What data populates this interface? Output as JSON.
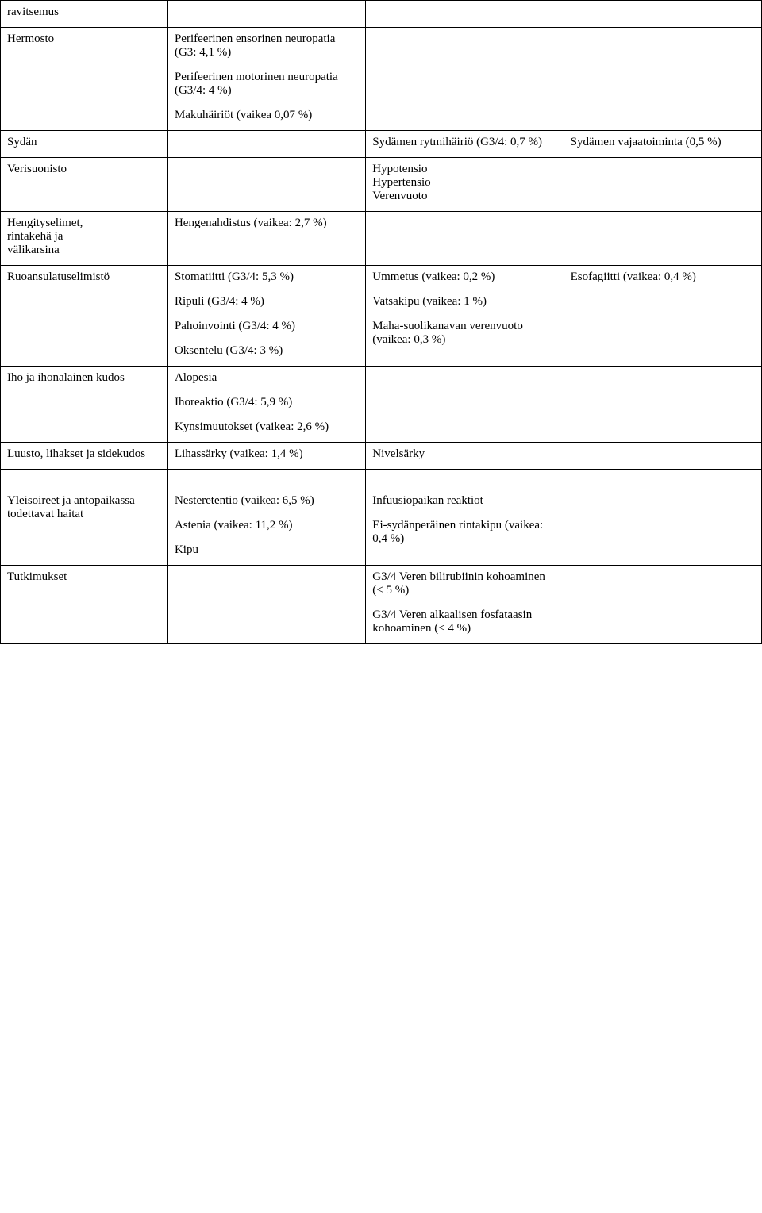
{
  "table": {
    "layout": {
      "col_widths_pct": [
        22,
        26,
        26,
        26
      ],
      "border_color": "#000000",
      "background_color": "#ffffff",
      "font_family": "Times New Roman",
      "font_size_pt": 11,
      "text_color": "#000000"
    },
    "rows": [
      {
        "c1": "ravitsemus",
        "c2": "",
        "c3": "",
        "c4": ""
      },
      {
        "c1": "Hermosto",
        "c2_paras": [
          "Perifeerinen ensorinen neuropatia (G3: 4,1 %)",
          "Perifeerinen motorinen neuropatia (G3/4: 4 %)",
          "Makuhäiriöt (vaikea 0,07 %)"
        ],
        "c3": "",
        "c4": ""
      },
      {
        "c1": "Sydän",
        "c2": "",
        "c3": "Sydämen rytmihäiriö (G3/4: 0,7 %)",
        "c4": "Sydämen vajaatoiminta (0,5 %)"
      },
      {
        "c1": "Verisuonisto",
        "c2": "",
        "c3_lines": [
          "Hypotensio",
          "Hypertensio",
          "Verenvuoto"
        ],
        "c4": ""
      },
      {
        "c1_lines": [
          "Hengityselimet,",
          "rintakehä ja",
          "välikarsina"
        ],
        "c2": "Hengenahdistus (vaikea: 2,7 %)",
        "c3": "",
        "c4": ""
      },
      {
        "c1": "Ruoansulatuselimistö",
        "c2_paras": [
          "Stomatiitti (G3/4: 5,3 %)",
          "Ripuli (G3/4: 4 %)",
          "Pahoinvointi (G3/4: 4 %)",
          "Oksentelu (G3/4: 3 %)"
        ],
        "c3_paras": [
          "Ummetus (vaikea: 0,2 %)",
          "Vatsakipu (vaikea: 1 %)",
          "Maha-suolikanavan verenvuoto (vaikea: 0,3 %)"
        ],
        "c4": "Esofagiitti (vaikea: 0,4 %)"
      },
      {
        "c1": "Iho ja ihonalainen kudos",
        "c2_paras": [
          "Alopesia",
          "Ihoreaktio (G3/4: 5,9 %)",
          "Kynsimuutokset (vaikea: 2,6 %)"
        ],
        "c3": "",
        "c4": ""
      },
      {
        "c1": "Luusto, lihakset ja sidekudos",
        "c2": "Lihassärky (vaikea: 1,4 %)",
        "c3": "Nivelsärky",
        "c4": ""
      },
      {
        "spacer": true
      },
      {
        "c1": "Yleisoireet ja antopaikassa todettavat haitat",
        "c2_paras": [
          "Nesteretentio (vaikea: 6,5 %)",
          "Astenia (vaikea: 11,2 %)",
          "Kipu"
        ],
        "c3_paras": [
          "Infuusiopaikan reaktiot",
          "Ei-sydänperäinen rintakipu (vaikea: 0,4 %)"
        ],
        "c4": ""
      },
      {
        "c1": "Tutkimukset",
        "c2": "",
        "c3_paras": [
          "G3/4 Veren bilirubiinin kohoaminen (< 5 %)",
          "G3/4 Veren alkaalisen fosfataasin kohoaminen (< 4 %)"
        ],
        "c4": ""
      }
    ]
  }
}
